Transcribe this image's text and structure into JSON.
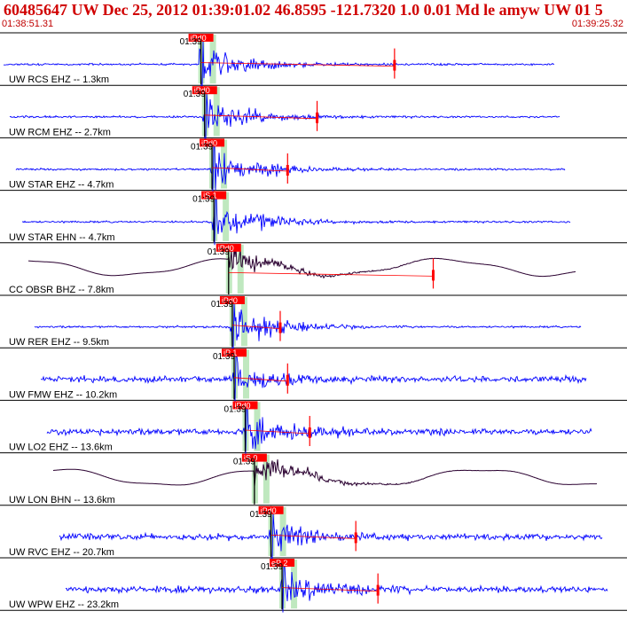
{
  "header": {
    "title": "60485647 UW Dec 25, 2012 01:39:01.02    46.8595 -121.7320  1.0 0.01 Md le amyw UW 01    5",
    "start_time": "01:38:51.31",
    "end_time": "01:39:25.32"
  },
  "colors": {
    "trace_blue": "#0000ff",
    "trace_long_period": "#2a0030",
    "pick_red": "#ff0000",
    "window_green": "#b8e6b8",
    "title_red": "#d00000"
  },
  "chart_data": {
    "type": "seismogram",
    "time_window": {
      "start": "01:38:51.31",
      "end": "01:39:25.32",
      "duration_s": 34.01
    },
    "traces": [
      {
        "station": "UW RCS EHZ -- 1.3km",
        "tick_label": "01:39",
        "pick_label": "iPd0",
        "pick_t": 10.9,
        "s_marker_t": 21.4,
        "color": "blue",
        "kind": "sp"
      },
      {
        "station": "UW RCM EHZ -- 2.7km",
        "tick_label": "01:39",
        "pick_label": "iPd0",
        "pick_t": 11.1,
        "s_marker_t": 17.2,
        "color": "blue",
        "kind": "sp"
      },
      {
        "station": "UW STAR EHZ -- 4.7km",
        "tick_label": "01:39",
        "pick_label": "iPd0",
        "pick_t": 11.5,
        "s_marker_t": 15.6,
        "color": "blue",
        "kind": "sp"
      },
      {
        "station": "UW STAR EHN -- 4.7km",
        "tick_label": "01:39",
        "pick_label": "iS 1",
        "pick_t": 11.6,
        "s_marker_t": null,
        "color": "blue",
        "kind": "sp"
      },
      {
        "station": "CC OBSR BHZ -- 7.8km",
        "tick_label": "01:39",
        "pick_label": "iPd0",
        "pick_t": 12.4,
        "s_marker_t": 23.5,
        "color": "dark",
        "kind": "bb"
      },
      {
        "station": "UW RER EHZ -- 9.5km",
        "tick_label": "01:39",
        "pick_label": "iPd0",
        "pick_t": 12.6,
        "s_marker_t": 15.2,
        "color": "blue",
        "kind": "sp"
      },
      {
        "station": "UW FMW EHZ -- 10.2km",
        "tick_label": "01:39",
        "pick_label": "iP 1",
        "pick_t": 12.7,
        "s_marker_t": 15.6,
        "color": "blue",
        "kind": "sp"
      },
      {
        "station": "UW LO2 EHZ -- 13.6km",
        "tick_label": "01:39",
        "pick_label": "iPd0",
        "pick_t": 13.3,
        "s_marker_t": 16.8,
        "color": "blue",
        "kind": "sp"
      },
      {
        "station": "UW LON BHN -- 13.6km",
        "tick_label": "01:39",
        "pick_label": "iS 0",
        "pick_t": 13.8,
        "s_marker_t": null,
        "color": "dark",
        "kind": "bb"
      },
      {
        "station": "UW RVC EHZ -- 20.7km",
        "tick_label": "01:39",
        "pick_label": "iPd0",
        "pick_t": 14.7,
        "s_marker_t": 19.3,
        "color": "blue",
        "kind": "sp"
      },
      {
        "station": "UW WPW EHZ -- 23.2km",
        "tick_label": "01:39",
        "pick_label": "eP 2",
        "pick_t": 15.3,
        "s_marker_t": 20.5,
        "color": "blue",
        "kind": "sp"
      }
    ]
  }
}
